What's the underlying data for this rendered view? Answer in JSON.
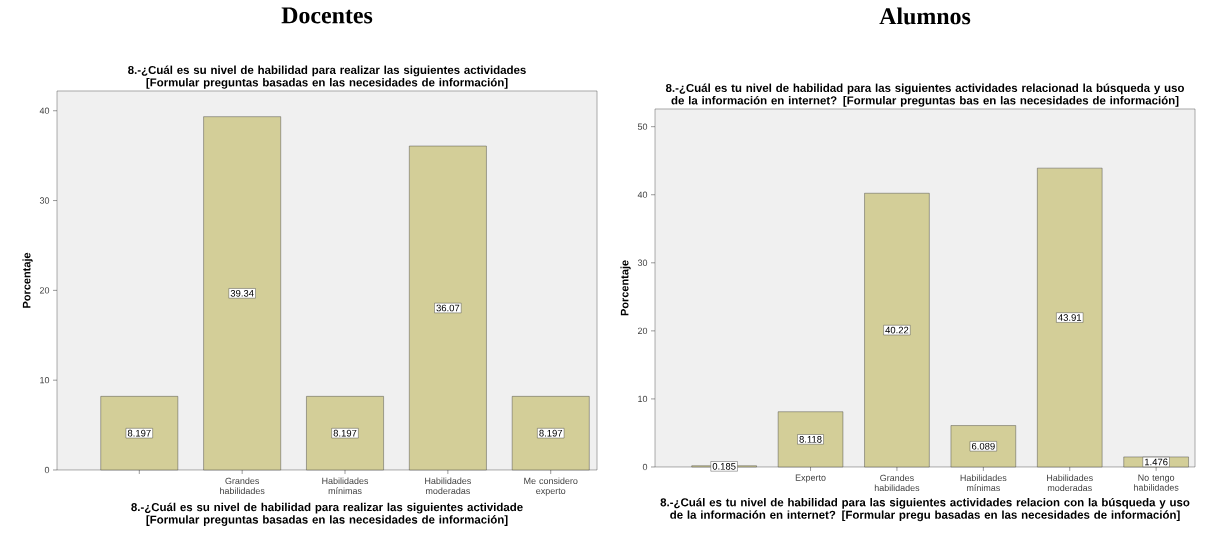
{
  "chart_data": [
    {
      "type": "bar",
      "title": "Docentes",
      "subtitle": "8.-¿Cuál es su nivel de habilidad para realizar las siguientes actividades [Formular preguntas basadas en las necesidades de información]",
      "xlabel": "8.-¿Cuál es su nivel de habilidad para realizar las siguientes actividade [Formular preguntas basadas en las necesidades de información]",
      "ylabel": "Porcentaje",
      "categories": [
        null,
        "Grandes habilidades",
        "Habilidades mínimas",
        "Habilidades moderadas",
        "Me considero experto"
      ],
      "values": [
        8.197,
        39.34,
        8.197,
        36.07,
        8.197
      ],
      "color": "#d3ce98",
      "ylim": [
        0,
        42.2
      ],
      "yticks": [
        0,
        10,
        20,
        30,
        40
      ],
      "data_labels": true
    },
    {
      "type": "bar",
      "title": "Alumnos",
      "subtitle": "8.-¿Cuál es tu nivel de habilidad para las siguientes actividades relacionad la búsqueda y uso de la información en internet? [Formular preguntas bas en las necesidades de información]",
      "xlabel": "8.-¿Cuál es tu nivel de habilidad para las siguientes actividades relacion con la búsqueda y uso de la información en internet? [Formular pregu basadas en las necesidades de información]",
      "ylabel": "Porcentaje",
      "categories": [
        null,
        "Experto",
        "Grandes habilidades",
        "Habilidades mínimas",
        "Habilidades moderadas",
        "No tengo habilidades"
      ],
      "values": [
        0.185,
        8.118,
        40.22,
        6.089,
        43.91,
        1.476
      ],
      "color": "#d3ce98",
      "ylim": [
        0,
        52.6
      ],
      "yticks": [
        0,
        10,
        20,
        30,
        40,
        50
      ],
      "data_labels": true
    }
  ]
}
